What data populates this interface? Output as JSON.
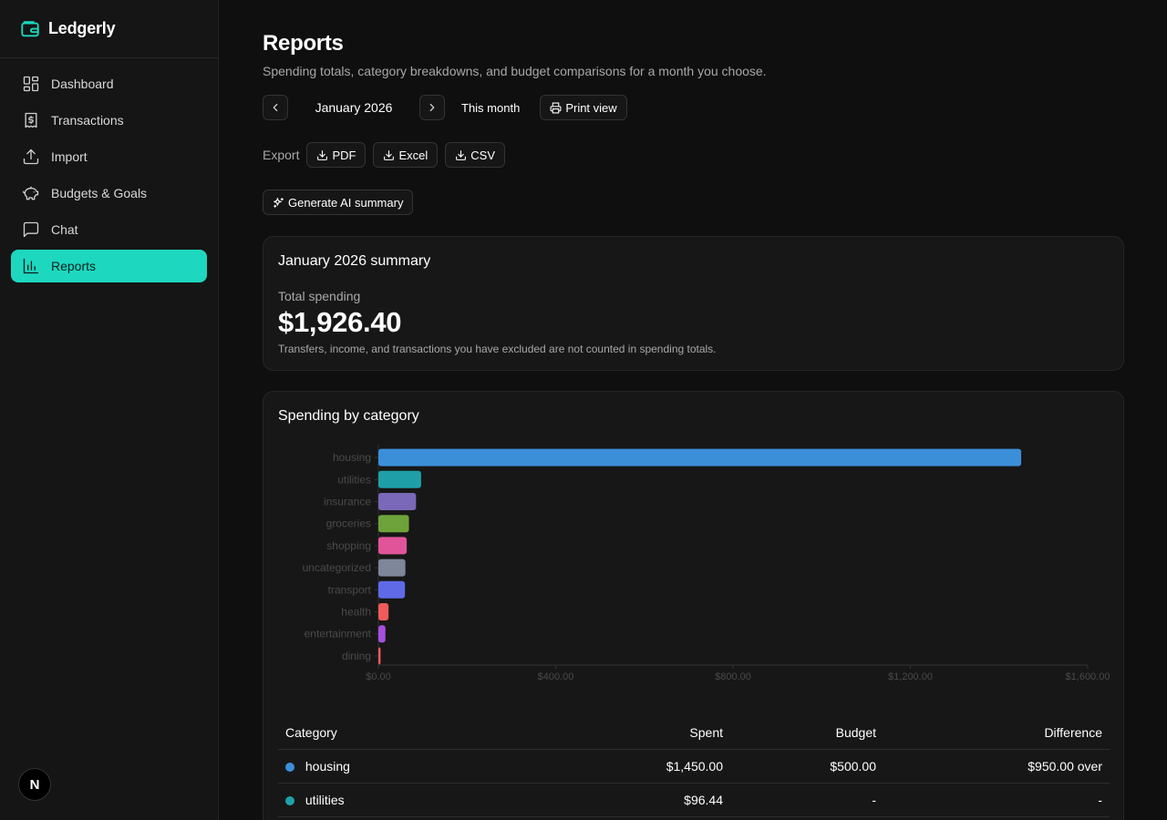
{
  "app": {
    "name": "Ledgerly"
  },
  "sidebar": {
    "items": [
      {
        "label": "Dashboard",
        "icon": "dashboard-icon",
        "active": false
      },
      {
        "label": "Transactions",
        "icon": "receipt-icon",
        "active": false
      },
      {
        "label": "Import",
        "icon": "upload-icon",
        "active": false
      },
      {
        "label": "Budgets & Goals",
        "icon": "piggy-bank-icon",
        "active": false
      },
      {
        "label": "Chat",
        "icon": "chat-icon",
        "active": false
      },
      {
        "label": "Reports",
        "icon": "bar-chart-icon",
        "active": true
      }
    ],
    "badge": "N"
  },
  "header": {
    "title": "Reports",
    "subtitle": "Spending totals, category breakdowns, and budget comparisons for a month you choose."
  },
  "controls": {
    "month": "January 2026",
    "this_month": "This month",
    "print_view": "Print view",
    "export_label": "Export",
    "export_pdf": "PDF",
    "export_excel": "Excel",
    "export_csv": "CSV",
    "ai_summary": "Generate AI summary"
  },
  "summary": {
    "title": "January 2026 summary",
    "total_label": "Total spending",
    "total_value": "$1,926.40",
    "note": "Transfers, income, and transactions you have excluded are not counted in spending totals."
  },
  "category_section": {
    "title": "Spending by category"
  },
  "chart_data": {
    "type": "bar",
    "orientation": "horizontal",
    "categories": [
      "housing",
      "utilities",
      "insurance",
      "groceries",
      "shopping",
      "uncategorized",
      "transport",
      "health",
      "entertainment",
      "dining"
    ],
    "values": [
      1450,
      96.44,
      85,
      69,
      64,
      61,
      60,
      23,
      16,
      5
    ],
    "colors": [
      "#3b8fd9",
      "#1fa0a8",
      "#7a68b8",
      "#6da33a",
      "#e0559a",
      "#7d8799",
      "#5f6ae6",
      "#ef5b5b",
      "#a64fdc",
      "#ef5b5b"
    ],
    "xticks": [
      "$0.00",
      "$400.00",
      "$800.00",
      "$1,200.00",
      "$1,600.00"
    ],
    "xlim": [
      0,
      1600
    ],
    "grid": false
  },
  "table": {
    "headers": [
      "Category",
      "Spent",
      "Budget",
      "Difference"
    ],
    "rows": [
      {
        "category": "housing",
        "color": "#3b8fd9",
        "spent": "$1,450.00",
        "budget": "$500.00",
        "difference": "$950.00 over",
        "status": "over"
      },
      {
        "category": "utilities",
        "color": "#1fa0a8",
        "spent": "$96.44",
        "budget": "-",
        "difference": "-",
        "status": "none"
      }
    ]
  }
}
